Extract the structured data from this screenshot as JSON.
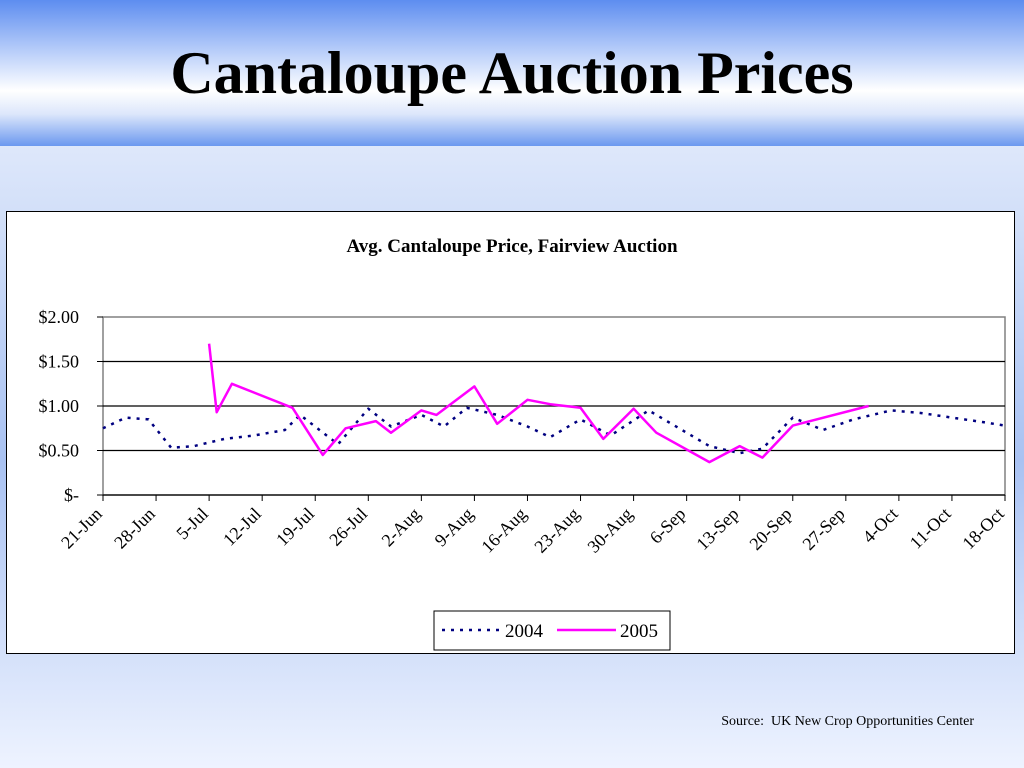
{
  "slide": {
    "title": "Cantaloupe Auction Prices",
    "source": "Source:  UK New Crop Opportunities Center"
  },
  "chart_data": {
    "type": "line",
    "title": "Avg. Cantaloupe Price, Fairview Auction",
    "xlabel": "",
    "ylabel": "",
    "ylim": [
      0,
      2
    ],
    "yticks": [
      {
        "value": 0,
        "label": "$-"
      },
      {
        "value": 0.5,
        "label": "$0.50"
      },
      {
        "value": 1.0,
        "label": "$1.00"
      },
      {
        "value": 1.5,
        "label": "$1.50"
      },
      {
        "value": 2.0,
        "label": "$2.00"
      }
    ],
    "categories": [
      "21-Jun",
      "28-Jun",
      "5-Jul",
      "12-Jul",
      "19-Jul",
      "26-Jul",
      "2-Aug",
      "9-Aug",
      "16-Aug",
      "23-Aug",
      "30-Aug",
      "6-Sep",
      "13-Sep",
      "20-Sep",
      "27-Sep",
      "4-Oct",
      "11-Oct",
      "18-Oct"
    ],
    "x_unit": "days from 21-Jun",
    "xlim": [
      0,
      119
    ],
    "grid": true,
    "legend_position": "bottom",
    "series": [
      {
        "name": "2004",
        "color": "#000080",
        "style": "dotted",
        "points": [
          [
            0,
            0.75
          ],
          [
            3,
            0.87
          ],
          [
            6,
            0.85
          ],
          [
            9,
            0.53
          ],
          [
            12,
            0.55
          ],
          [
            16,
            0.63
          ],
          [
            20,
            0.67
          ],
          [
            24,
            0.73
          ],
          [
            26,
            0.9
          ],
          [
            31,
            0.57
          ],
          [
            35,
            0.97
          ],
          [
            38,
            0.77
          ],
          [
            42,
            0.9
          ],
          [
            45,
            0.77
          ],
          [
            48,
            0.98
          ],
          [
            52,
            0.9
          ],
          [
            56,
            0.77
          ],
          [
            59,
            0.65
          ],
          [
            63,
            0.85
          ],
          [
            67,
            0.67
          ],
          [
            72,
            0.95
          ],
          [
            76,
            0.75
          ],
          [
            80,
            0.55
          ],
          [
            84,
            0.47
          ],
          [
            87,
            0.52
          ],
          [
            91,
            0.87
          ],
          [
            95,
            0.73
          ],
          [
            99,
            0.85
          ],
          [
            104,
            0.95
          ],
          [
            108,
            0.92
          ],
          [
            112,
            0.87
          ],
          [
            116,
            0.82
          ],
          [
            119,
            0.78
          ]
        ]
      },
      {
        "name": "2005",
        "color": "#ff00ff",
        "style": "solid",
        "points": [
          [
            14,
            1.7
          ],
          [
            15,
            0.93
          ],
          [
            17,
            1.25
          ],
          [
            25,
            0.98
          ],
          [
            29,
            0.45
          ],
          [
            32,
            0.75
          ],
          [
            36,
            0.83
          ],
          [
            38,
            0.7
          ],
          [
            42,
            0.95
          ],
          [
            44,
            0.9
          ],
          [
            49,
            1.22
          ],
          [
            52,
            0.8
          ],
          [
            56,
            1.07
          ],
          [
            59,
            1.02
          ],
          [
            63,
            0.98
          ],
          [
            66,
            0.63
          ],
          [
            70,
            0.97
          ],
          [
            73,
            0.7
          ],
          [
            80,
            0.37
          ],
          [
            84,
            0.55
          ],
          [
            87,
            0.42
          ],
          [
            91,
            0.78
          ],
          [
            101,
            1.0
          ]
        ]
      }
    ]
  }
}
